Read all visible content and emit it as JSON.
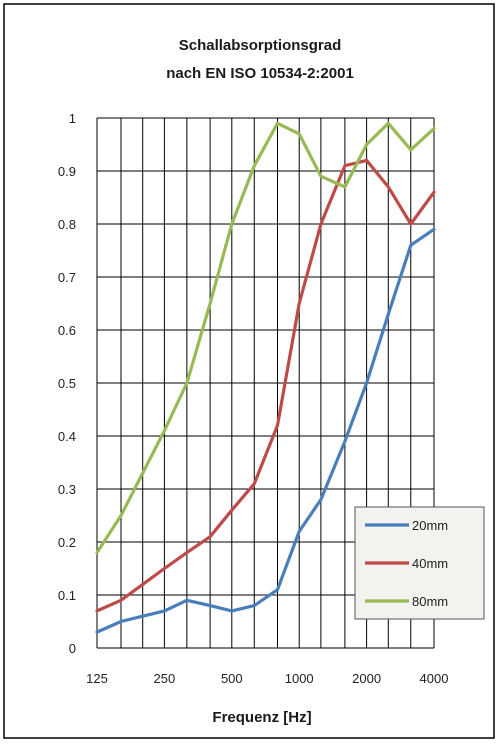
{
  "chart_data": {
    "type": "line",
    "title": [
      "Schallabsorptionsgrad",
      "nach EN ISO 10534-2:2001"
    ],
    "xlabel": "Frequenz [Hz]",
    "ylabel": "",
    "x_scale": "log",
    "x_tick_labels": [
      "125",
      "250",
      "500",
      "1000",
      "2000",
      "4000"
    ],
    "y_ticks": [
      "0",
      "0.1",
      "0.2",
      "0.3",
      "0.4",
      "0.5",
      "0.6",
      "0.7",
      "0.8",
      "0.9",
      "1"
    ],
    "ylim": [
      0,
      1
    ],
    "xlim": [
      125,
      4000
    ],
    "grid": true,
    "legend_position": "bottom-right",
    "x": [
      125,
      160,
      200,
      250,
      315,
      400,
      500,
      630,
      800,
      1000,
      1250,
      1600,
      2000,
      2500,
      3150,
      4000
    ],
    "series": [
      {
        "name": "20mm",
        "color": "#4a7ebb",
        "values": [
          0.03,
          0.05,
          0.06,
          0.07,
          0.09,
          0.08,
          0.07,
          0.08,
          0.11,
          0.22,
          0.28,
          0.39,
          0.5,
          0.63,
          0.76,
          0.79
        ]
      },
      {
        "name": "40mm",
        "color": "#be4b48",
        "values": [
          0.07,
          0.09,
          0.12,
          0.15,
          0.18,
          0.21,
          0.26,
          0.31,
          0.42,
          0.65,
          0.8,
          0.91,
          0.92,
          0.87,
          0.8,
          0.86
        ]
      },
      {
        "name": "80mm",
        "color": "#98b954",
        "values": [
          0.18,
          0.25,
          0.33,
          0.41,
          0.5,
          0.65,
          0.8,
          0.91,
          0.99,
          0.97,
          0.89,
          0.87,
          0.95,
          0.99,
          0.94,
          0.98
        ]
      }
    ]
  }
}
